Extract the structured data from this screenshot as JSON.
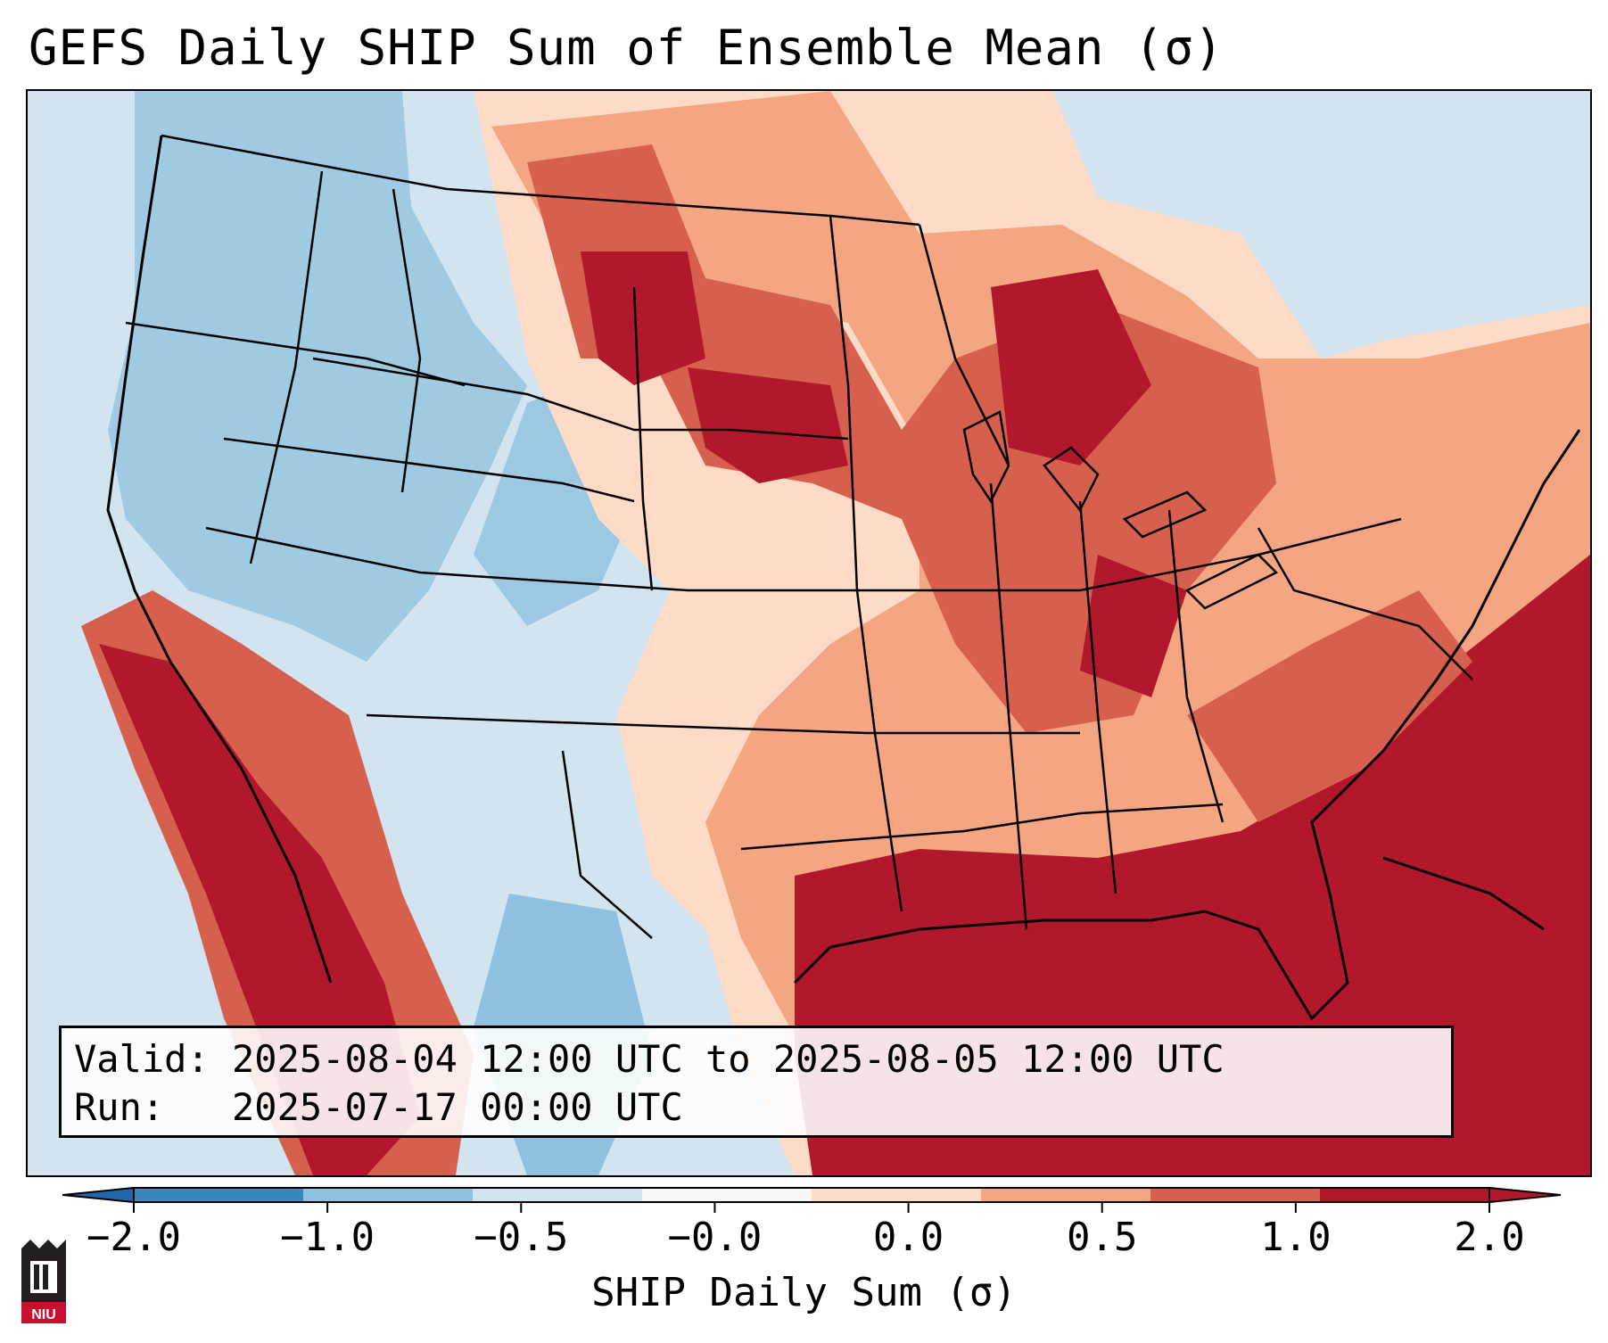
{
  "title": "GEFS Daily SHIP Sum of Ensemble Mean (σ)",
  "info": {
    "valid_label": "Valid:",
    "valid_value": "2025-08-04 12:00 UTC to 2025-08-05 12:00 UTC",
    "run_label": "Run:",
    "run_value": "2025-07-17 00:00 UTC"
  },
  "colorbar": {
    "label": "SHIP Daily Sum (σ)",
    "ticks": [
      "−2.0",
      "−1.0",
      "−0.5",
      "−0.0",
      "0.0",
      "0.5",
      "1.0",
      "2.0"
    ],
    "colors": [
      "#3a87c0",
      "#8fc1de",
      "#d1e5f0",
      "#f7f7f7",
      "#fddbc7",
      "#f4a582",
      "#d6604d",
      "#b2182b"
    ],
    "under_color": "#2166ac",
    "over_color": "#b2182b"
  },
  "map": {
    "background_color": "#d2e4ef",
    "region": "Continental United States",
    "overlay": "state borders and coastlines"
  },
  "logo": {
    "text": "NIU"
  }
}
